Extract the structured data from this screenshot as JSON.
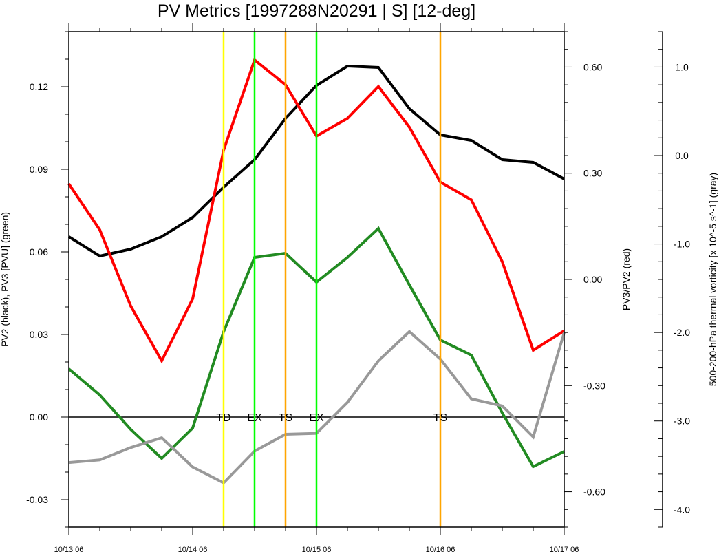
{
  "chart_data": {
    "type": "line",
    "title": "PV Metrics [1997288N20291 | S] [12-deg]",
    "ylabel_left": "PV2 (black), PV3 [PVU] (green)",
    "ylabel_right": "PV3/PV2 (red)",
    "ylabel_far_right": "500-200-hPa thermal vorticity [x 10^-5 s^-1] (gray)",
    "xlim": [
      0,
      4
    ],
    "x_ticks": [
      0,
      1,
      2,
      3,
      4
    ],
    "x_tick_labels": [
      "10/13 06",
      "10/14 06",
      "10/15 06",
      "10/16 06",
      "10/17 06"
    ],
    "ylim_left": [
      -0.04,
      0.14
    ],
    "left_ticks": [
      -0.03,
      0.0,
      0.03,
      0.06,
      0.09,
      0.12
    ],
    "left_tick_labels": [
      "-0.03",
      "0.00",
      "0.03",
      "0.06",
      "0.09",
      "0.12"
    ],
    "ylim_right": [
      -0.7,
      0.7
    ],
    "right_ticks": [
      -0.6,
      -0.3,
      0.0,
      0.3,
      0.6
    ],
    "right_tick_labels": [
      "-0.60",
      "-0.30",
      "0.00",
      "0.30",
      "0.60"
    ],
    "ylim_far_right": [
      -4.2,
      1.4
    ],
    "far_right_ticks": [
      -4.0,
      -3.0,
      -2.0,
      -1.0,
      0.0,
      1.0
    ],
    "far_right_tick_labels": [
      "-4.0",
      "-3.0",
      "-2.0",
      "-1.0",
      "0.0",
      "1.0"
    ],
    "zero_line": 0.0,
    "series": [
      {
        "axis": "left",
        "color": "#000000",
        "x": [
          0,
          0.25,
          0.5,
          0.75,
          1.0,
          1.25,
          1.5,
          1.75,
          2.0,
          2.25,
          2.5,
          2.75,
          3.0,
          3.25,
          3.5,
          3.75,
          4.0
        ],
        "values": [
          0.0655,
          0.0585,
          0.061,
          0.0655,
          0.0725,
          0.0835,
          0.0935,
          0.1085,
          0.1205,
          0.1275,
          0.127,
          0.112,
          0.1025,
          0.1005,
          0.0935,
          0.0925,
          0.0865
        ]
      },
      {
        "axis": "left",
        "color": "#228B22",
        "x": [
          0,
          0.25,
          0.5,
          0.75,
          1.0,
          1.25,
          1.5,
          1.75,
          2.0,
          2.25,
          2.5,
          2.75,
          3.0,
          3.25,
          3.5,
          3.75,
          4.0
        ],
        "values": [
          0.0175,
          0.008,
          -0.0045,
          -0.015,
          -0.004,
          0.031,
          0.058,
          0.0595,
          0.049,
          0.058,
          0.0685,
          0.048,
          0.028,
          0.0225,
          0.0015,
          -0.018,
          -0.0125
        ]
      },
      {
        "axis": "right",
        "color": "#ff0000",
        "x": [
          0,
          0.25,
          0.5,
          0.75,
          1.0,
          1.25,
          1.5,
          1.75,
          2.0,
          2.25,
          2.5,
          2.75,
          3.0,
          3.25,
          3.5,
          3.75,
          4.0
        ],
        "values": [
          0.27,
          0.14,
          -0.075,
          -0.23,
          -0.055,
          0.365,
          0.62,
          0.55,
          0.405,
          0.455,
          0.545,
          0.43,
          0.275,
          0.225,
          0.05,
          -0.2,
          -0.145
        ]
      },
      {
        "axis": "far_right",
        "color": "#999999",
        "x": [
          0,
          0.25,
          0.5,
          0.75,
          1.0,
          1.25,
          1.5,
          1.75,
          2.0,
          2.25,
          2.5,
          2.75,
          3.0,
          3.25,
          3.5,
          3.75,
          4.0
        ],
        "values": [
          -3.47,
          -3.44,
          -3.3,
          -3.19,
          -3.52,
          -3.7,
          -3.34,
          -3.15,
          -3.14,
          -2.79,
          -2.32,
          -1.99,
          -2.3,
          -2.75,
          -2.83,
          -3.18,
          -2.0
        ]
      }
    ],
    "events": [
      {
        "x": 1.25,
        "label": "TD",
        "color": "#ffff00"
      },
      {
        "x": 1.5,
        "label": "EX",
        "color": "#00ff00"
      },
      {
        "x": 1.75,
        "label": "TS",
        "color": "#ffa500"
      },
      {
        "x": 2.0,
        "label": "EX",
        "color": "#00ff00"
      },
      {
        "x": 3.0,
        "label": "TS",
        "color": "#ffa500"
      }
    ]
  }
}
